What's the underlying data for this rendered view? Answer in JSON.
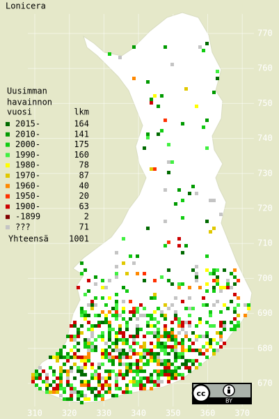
{
  "title": "Lonicera",
  "legend": {
    "heading": [
      "Uusimman",
      "havainnon",
      "vuosi"
    ],
    "count_header": "lkm",
    "items": [
      {
        "label": "2015-",
        "count": 164,
        "color": "#006a00"
      },
      {
        "label": "2010-",
        "count": 141,
        "color": "#009a00"
      },
      {
        "label": "2000-",
        "count": 175,
        "color": "#10cc10"
      },
      {
        "label": "1990-",
        "count": 160,
        "color": "#40f040"
      },
      {
        "label": "1980-",
        "count": 78,
        "color": "#ffff00"
      },
      {
        "label": "1970-",
        "count": 87,
        "color": "#e0c800"
      },
      {
        "label": "1960-",
        "count": 40,
        "color": "#ff8800"
      },
      {
        "label": "1950-",
        "count": 20,
        "color": "#ff3000"
      },
      {
        "label": "1900-",
        "count": 63,
        "color": "#cc0000"
      },
      {
        "label": "-1899",
        "count": 2,
        "color": "#800000"
      },
      {
        "label": "???",
        "count": 71,
        "color": "#c4c4c4"
      }
    ],
    "total_label": "Yhteensä",
    "total": 1001
  },
  "x_labels": [
    310,
    320,
    330,
    340,
    350,
    360,
    370
  ],
  "y_labels": [
    770,
    760,
    750,
    740,
    730,
    720,
    710,
    700,
    690,
    680,
    670
  ],
  "license": {
    "logo": "cc",
    "by": "BY"
  }
}
